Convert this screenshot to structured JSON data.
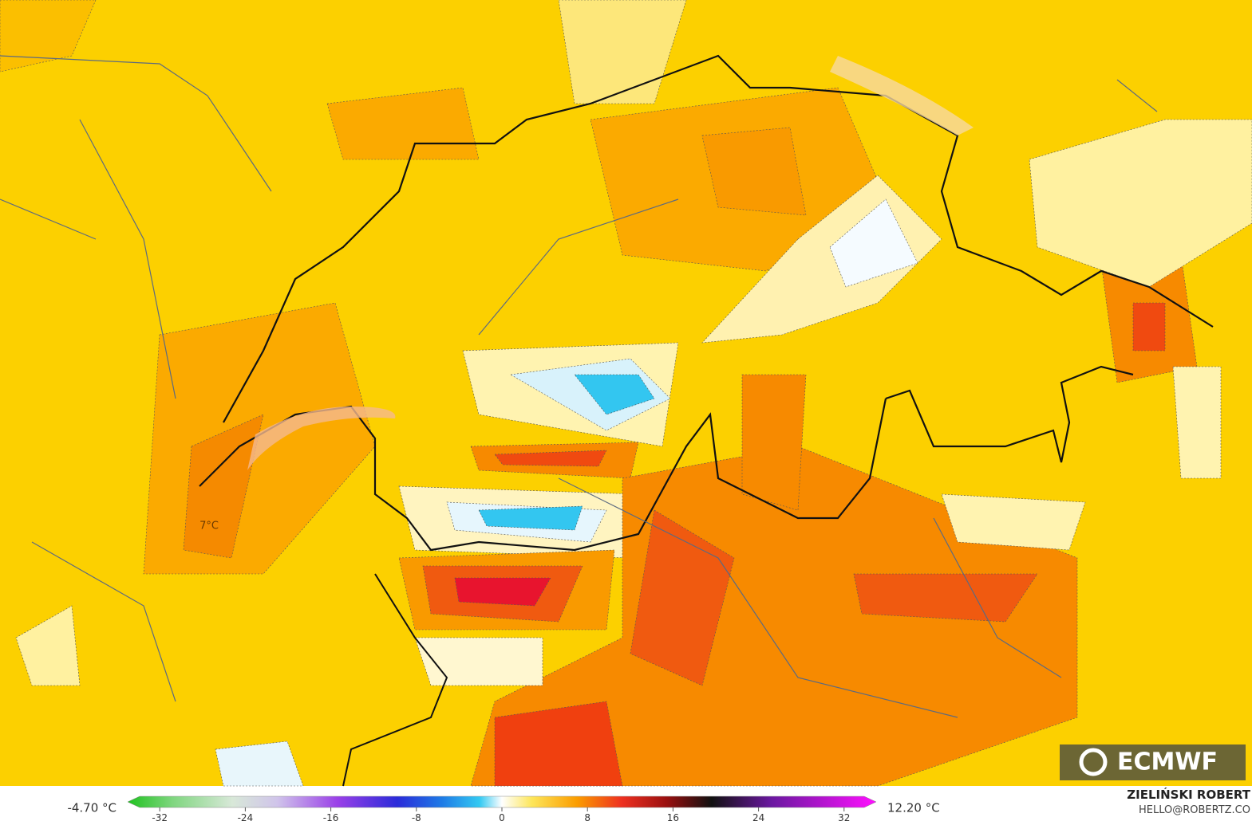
{
  "map": {
    "spot_label": "7°C",
    "min_label": "-4.70 °C",
    "max_label": "12.20 °C",
    "colorbar": {
      "lim": [
        -35,
        35
      ],
      "ticks": [
        -32,
        -24,
        -16,
        -8,
        0,
        8,
        16,
        24,
        32
      ]
    },
    "logo": "ECMWF",
    "credit": {
      "name": "ZIELIŃSKI ROBERT",
      "contact": "HELLO@ROBERTZ.CO"
    }
  }
}
